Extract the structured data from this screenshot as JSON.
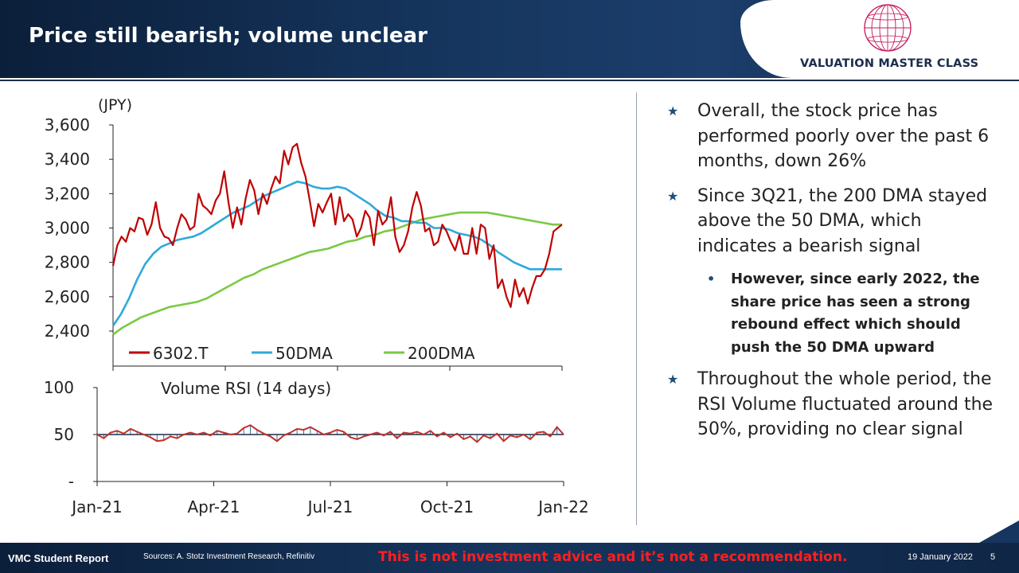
{
  "header": {
    "title": "Price still bearish; volume unclear",
    "logo_text": "VALUATION MASTER CLASS"
  },
  "colors": {
    "price": "#c00000",
    "dma50": "#2eaad8",
    "dma200": "#7ac943",
    "rsi": "#c0312b",
    "rsi_fill": "#2a7aa0",
    "navy": "#0b1f3a"
  },
  "chart_data": [
    {
      "type": "line",
      "unit_label": "(JPY)",
      "ylim": [
        2400,
        3600
      ],
      "y_ticks": [
        "3,600",
        "3,400",
        "3,200",
        "3,000",
        "2,800",
        "2,600",
        "2,400"
      ],
      "x_tick_labels": [
        "Jan-21",
        "Apr-21",
        "Jul-21",
        "Oct-21",
        "Jan-22"
      ],
      "legend": [
        "6302.T",
        "50DMA",
        "200DMA"
      ],
      "series": [
        {
          "name": "6302.T",
          "values": [
            2780,
            2900,
            2950,
            2920,
            3000,
            2980,
            3060,
            3050,
            2960,
            3020,
            3150,
            3000,
            2950,
            2940,
            2900,
            3000,
            3080,
            3050,
            2990,
            3010,
            3200,
            3130,
            3110,
            3080,
            3160,
            3200,
            3330,
            3150,
            3000,
            3120,
            3020,
            3170,
            3280,
            3220,
            3080,
            3200,
            3140,
            3230,
            3300,
            3260,
            3450,
            3370,
            3470,
            3490,
            3380,
            3300,
            3160,
            3010,
            3140,
            3090,
            3150,
            3200,
            3020,
            3180,
            3040,
            3080,
            3050,
            2950,
            3000,
            3100,
            3060,
            2900,
            3100,
            3020,
            3050,
            3180,
            2950,
            2860,
            2900,
            2980,
            3120,
            3210,
            3130,
            2980,
            3000,
            2900,
            2920,
            3020,
            2980,
            2920,
            2870,
            2960,
            2850,
            2850,
            3000,
            2850,
            3020,
            3000,
            2820,
            2900,
            2650,
            2700,
            2600,
            2540,
            2700,
            2600,
            2650,
            2560,
            2650,
            2720,
            2720,
            2760,
            2850,
            2980,
            3000,
            3020
          ]
        },
        {
          "name": "50DMA",
          "values": [
            2430,
            2500,
            2590,
            2700,
            2790,
            2850,
            2890,
            2910,
            2930,
            2940,
            2950,
            2970,
            3000,
            3030,
            3060,
            3090,
            3110,
            3130,
            3160,
            3190,
            3210,
            3230,
            3250,
            3270,
            3260,
            3240,
            3230,
            3230,
            3240,
            3230,
            3200,
            3170,
            3140,
            3100,
            3070,
            3060,
            3040,
            3040,
            3030,
            3030,
            3000,
            3000,
            2990,
            2970,
            2960,
            2950,
            2930,
            2900,
            2860,
            2830,
            2800,
            2780,
            2760,
            2760,
            2760,
            2760,
            2760
          ]
        },
        {
          "name": "200DMA",
          "values": [
            2380,
            2420,
            2450,
            2480,
            2500,
            2520,
            2540,
            2550,
            2560,
            2570,
            2590,
            2620,
            2650,
            2680,
            2710,
            2730,
            2760,
            2780,
            2800,
            2820,
            2840,
            2860,
            2870,
            2880,
            2900,
            2920,
            2930,
            2950,
            2960,
            2980,
            2990,
            3010,
            3030,
            3050,
            3060,
            3070,
            3080,
            3090,
            3090,
            3090,
            3090,
            3080,
            3070,
            3060,
            3050,
            3040,
            3030,
            3020,
            3020
          ]
        }
      ]
    },
    {
      "type": "area",
      "title": "Volume RSI (14 days)",
      "ylim": [
        0,
        100
      ],
      "y_ticks": [
        "100",
        "50",
        "-"
      ],
      "x_tick_labels": [
        "Jan-21",
        "Apr-21",
        "Jul-21",
        "Oct-21",
        "Jan-22"
      ],
      "baseline": 50,
      "values": [
        50,
        46,
        52,
        54,
        51,
        56,
        53,
        50,
        47,
        43,
        44,
        48,
        46,
        50,
        52,
        50,
        52,
        49,
        54,
        52,
        50,
        51,
        57,
        60,
        55,
        51,
        48,
        43,
        49,
        52,
        56,
        55,
        58,
        54,
        50,
        52,
        55,
        53,
        47,
        45,
        48,
        50,
        52,
        49,
        53,
        46,
        52,
        51,
        53,
        50,
        54,
        48,
        52,
        47,
        51,
        45,
        48,
        42,
        49,
        46,
        51,
        43,
        49,
        47,
        50,
        45,
        52,
        53,
        48,
        58,
        50
      ]
    }
  ],
  "bullets": [
    {
      "text": "Overall, the stock price has performed poorly over the past 6 months, down 26%"
    },
    {
      "text": "Since 3Q21, the 200 DMA stayed above the 50 DMA, which indicates a bearish signal"
    },
    {
      "text": "However, since early 2022, the share price has seen a strong rebound effect which should push the 50 DMA upward"
    },
    {
      "text": "Throughout the whole period, the RSI Volume fluctuated around the 50%, providing no clear signal"
    }
  ],
  "footer": {
    "left": "VMC Student Report",
    "sources": "Sources: A. Stotz Investment Research, Refinitiv",
    "disclaimer": "This is not investment advice and it’s not a recommendation.",
    "date": "19 January 2022",
    "page": "5"
  }
}
